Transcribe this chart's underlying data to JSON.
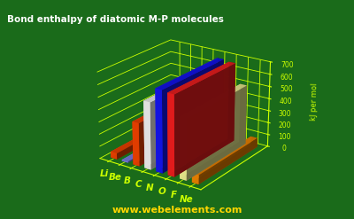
{
  "title": "Bond enthalpy of diatomic M-P molecules",
  "ylabel": "kJ per mol",
  "watermark": "www.webelements.com",
  "elements": [
    "Li",
    "Be",
    "B",
    "C",
    "N",
    "O",
    "F",
    "Ne"
  ],
  "values": [
    50,
    10,
    350,
    540,
    660,
    650,
    490,
    75
  ],
  "bar_colors": [
    "#FF4500",
    "#8888FF",
    "#FF4500",
    "#FFFFFF",
    "#1515FF",
    "#FF2020",
    "#FFFF99",
    "#FF8C00"
  ],
  "background_color": "#1A6B1A",
  "grid_color": "#CCFF00",
  "tick_color": "#CCFF00",
  "title_color": "#FFFFFF",
  "label_color": "#CCFF00",
  "element_label_color": "#FFD700",
  "base_color": "#8B0000",
  "ylim": [
    0,
    700
  ],
  "yticks": [
    0,
    100,
    200,
    300,
    400,
    500,
    600,
    700
  ],
  "elev": 22,
  "azim": -55
}
